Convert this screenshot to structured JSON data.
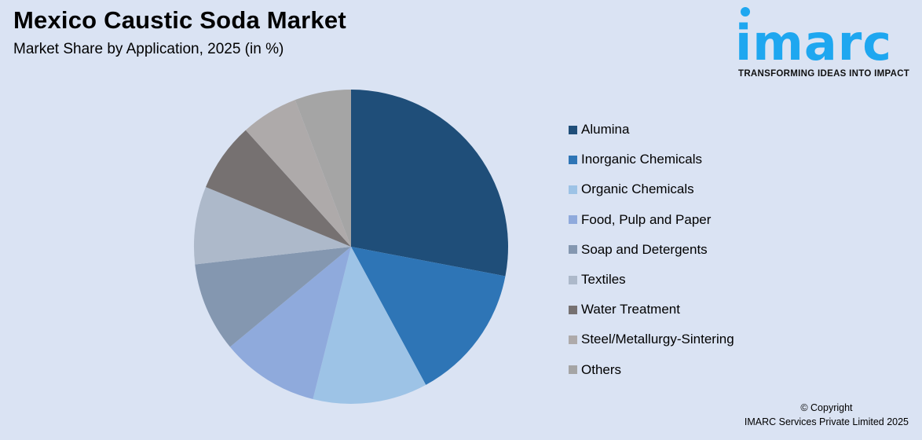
{
  "header": {
    "title": "Mexico Caustic Soda Market",
    "subtitle": "Market Share by Application, 2025 (in %)"
  },
  "logo": {
    "word": "imarc",
    "tagline": "TRANSFORMING IDEAS INTO IMPACT",
    "color": "#1ea7f0"
  },
  "footer": {
    "line1": "© Copyright",
    "line2": "IMARC Services Private Limited 2025"
  },
  "chart_data": {
    "type": "pie",
    "title": "Mexico Caustic Soda Market",
    "subtitle": "Market Share by Application, 2025 (in %)",
    "start_angle": "12 o'clock, clockwise",
    "legend_position": "right",
    "categories": [
      "Alumina",
      "Inorganic Chemicals",
      "Organic Chemicals",
      "Food, Pulp and Paper",
      "Soap and Detergents",
      "Textiles",
      "Water Treatment",
      "Steel/Metallurgy-Sintering",
      "Others"
    ],
    "values": [
      28.0,
      14.1,
      11.8,
      10.1,
      9.2,
      8.0,
      7.1,
      5.9,
      5.8
    ],
    "colors": [
      "#1f4e79",
      "#2e75b6",
      "#9dc3e6",
      "#8faadc",
      "#8497b0",
      "#adb9ca",
      "#767171",
      "#aeaaaa",
      "#a5a5a5"
    ]
  }
}
